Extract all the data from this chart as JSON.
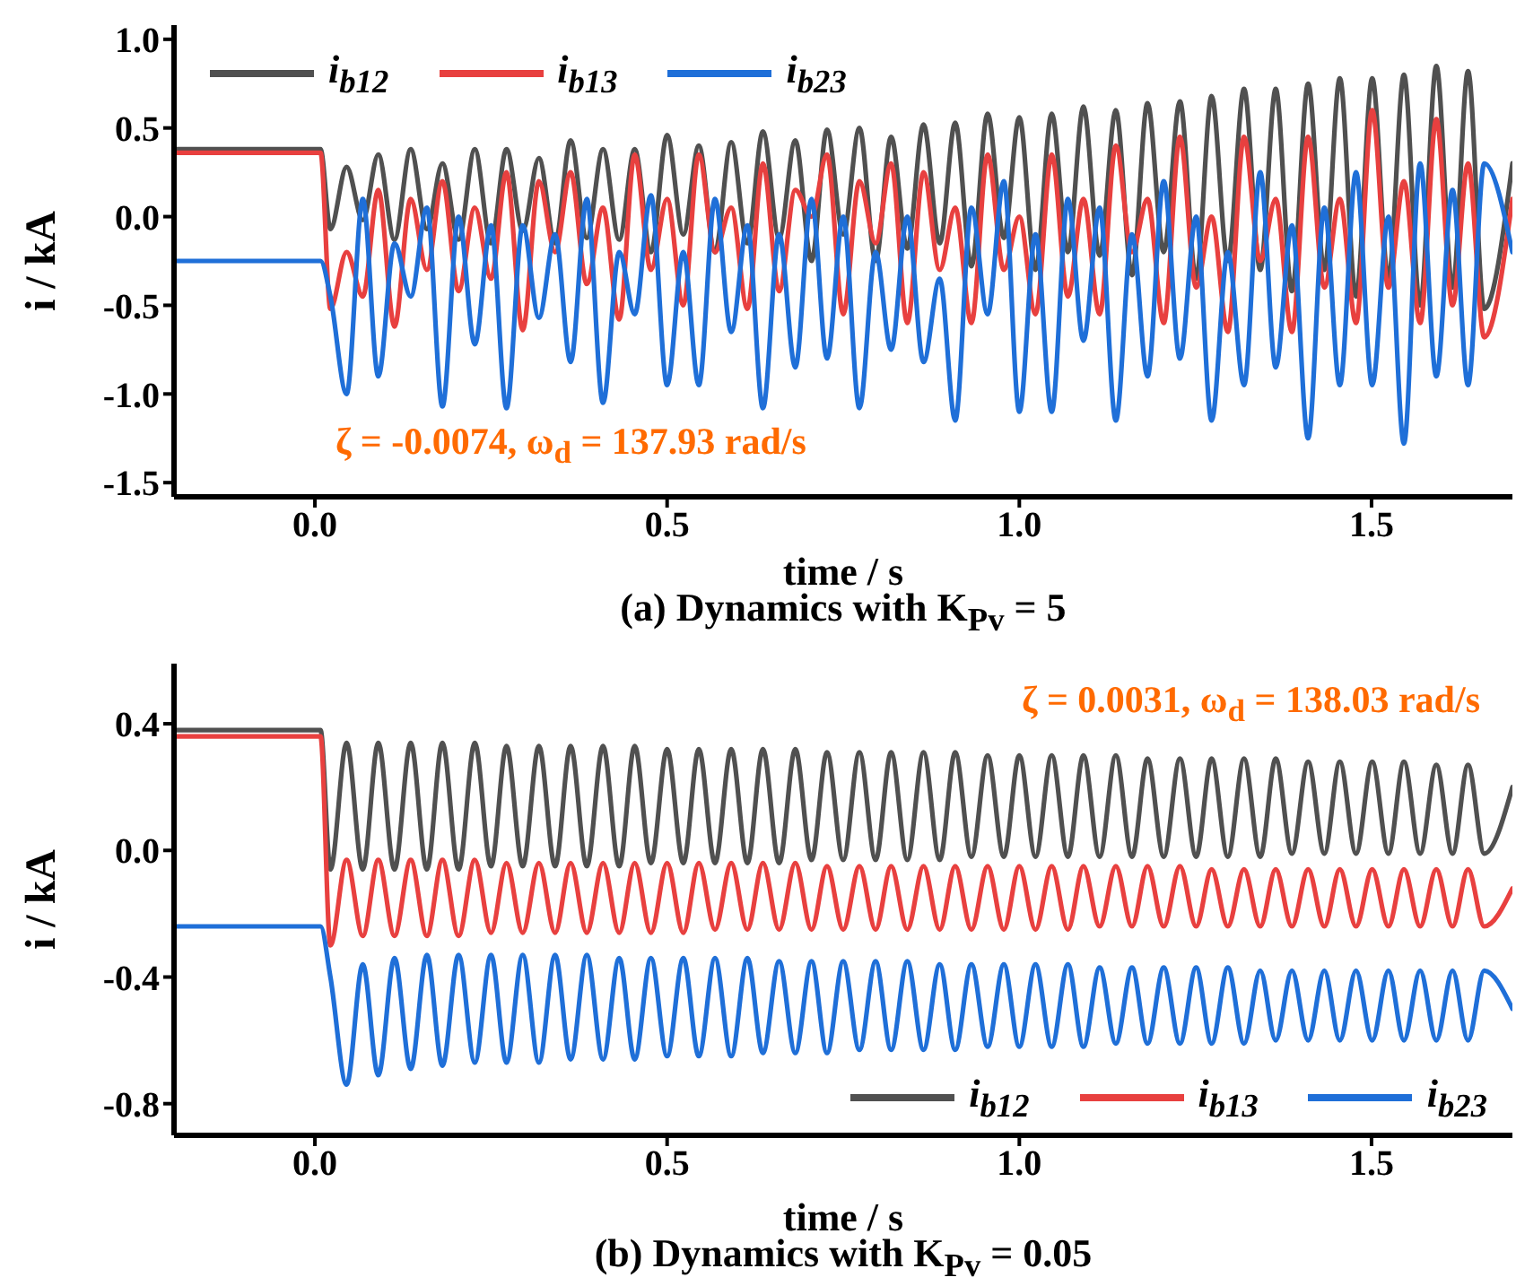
{
  "chart_data": [
    {
      "type": "line",
      "title": "(a) Dynamics with K$_{Pv}$ = 5",
      "xlabel": "time / s",
      "ylabel": "i / kA",
      "legend": "top left",
      "annotations": [
        "ζ = -0.0074, ω$_{d}$ = 137.93 rad/s"
      ],
      "xlim": [
        -0.2,
        1.7
      ],
      "xticks": [
        {
          "value": 0,
          "label": "0.0"
        },
        {
          "value": 0.5,
          "label": "0.5"
        },
        {
          "value": 1,
          "label": "1.0"
        },
        {
          "value": 1.5,
          "label": "1.5"
        }
      ],
      "ylim": [
        -1.58,
        1.08
      ],
      "yticks": [
        {
          "value": 1,
          "label": "1.0"
        },
        {
          "value": 0.5,
          "label": "0.5"
        },
        {
          "value": 0,
          "label": "0.0"
        },
        {
          "value": -0.5,
          "label": "-0.5"
        },
        {
          "value": -1,
          "label": "-1.0"
        },
        {
          "value": -1.5,
          "label": "-1.5"
        }
      ],
      "x": [
        -0.2,
        0.008,
        0.022,
        0.045,
        0.068,
        0.09,
        0.113,
        0.136,
        0.159,
        0.181,
        0.204,
        0.227,
        0.25,
        0.272,
        0.295,
        0.318,
        0.341,
        0.363,
        0.386,
        0.409,
        0.432,
        0.454,
        0.477,
        0.5,
        0.523,
        0.545,
        0.568,
        0.591,
        0.614,
        0.636,
        0.659,
        0.682,
        0.705,
        0.727,
        0.75,
        0.773,
        0.796,
        0.818,
        0.841,
        0.864,
        0.887,
        0.909,
        0.932,
        0.955,
        0.978,
        1.0,
        1.023,
        1.046,
        1.069,
        1.091,
        1.114,
        1.137,
        1.16,
        1.182,
        1.205,
        1.228,
        1.251,
        1.273,
        1.296,
        1.319,
        1.342,
        1.364,
        1.387,
        1.41,
        1.433,
        1.455,
        1.478,
        1.501,
        1.524,
        1.546,
        1.569,
        1.592,
        1.615,
        1.637,
        1.66,
        1.7
      ],
      "series": [
        {
          "name": "i$_{b12}$",
          "color": "#505050",
          "values": [
            0.38,
            0.38,
            -0.07,
            0.28,
            -0.02,
            0.35,
            -0.13,
            0.38,
            -0.07,
            0.3,
            -0.13,
            0.38,
            -0.15,
            0.38,
            -0.08,
            0.33,
            -0.15,
            0.43,
            -0.12,
            0.38,
            -0.13,
            0.38,
            -0.2,
            0.46,
            -0.1,
            0.4,
            -0.2,
            0.42,
            -0.15,
            0.48,
            -0.12,
            0.43,
            -0.25,
            0.49,
            -0.1,
            0.5,
            -0.25,
            0.45,
            -0.18,
            0.52,
            -0.15,
            0.53,
            -0.28,
            0.58,
            -0.12,
            0.56,
            -0.3,
            0.58,
            -0.2,
            0.62,
            -0.22,
            0.6,
            -0.33,
            0.64,
            -0.2,
            0.65,
            -0.35,
            0.68,
            -0.25,
            0.72,
            -0.3,
            0.72,
            -0.42,
            0.75,
            -0.3,
            0.78,
            -0.45,
            0.78,
            -0.35,
            0.8,
            -0.5,
            0.85,
            -0.4,
            0.82,
            -0.52,
            0.3
          ]
        },
        {
          "name": "i$_{b13}$",
          "color": "#e8403f",
          "values": [
            0.36,
            0.36,
            -0.52,
            -0.2,
            -0.45,
            0.15,
            -0.62,
            0.1,
            -0.3,
            0.2,
            -0.42,
            0.05,
            -0.35,
            0.25,
            -0.64,
            0.2,
            -0.2,
            0.25,
            -0.38,
            0.05,
            -0.58,
            0.35,
            -0.3,
            0.1,
            -0.5,
            0.35,
            -0.2,
            0.05,
            -0.52,
            0.3,
            -0.42,
            0.15,
            0.0,
            0.35,
            -0.55,
            0.2,
            -0.15,
            0.3,
            -0.6,
            0.25,
            -0.3,
            0.05,
            -0.6,
            0.35,
            -0.3,
            0.0,
            -0.55,
            0.35,
            -0.45,
            0.1,
            -0.55,
            0.4,
            -0.2,
            0.1,
            -0.6,
            0.45,
            -0.4,
            0.0,
            -0.65,
            0.45,
            -0.25,
            0.1,
            -0.65,
            0.45,
            -0.4,
            0.1,
            -0.6,
            0.6,
            -0.4,
            0.2,
            -0.6,
            0.55,
            -0.5,
            0.3,
            -0.68,
            0.1
          ]
        },
        {
          "name": "i$_{b23}$",
          "color": "#1f6fd8",
          "values": [
            -0.25,
            -0.25,
            -0.45,
            -1.0,
            0.1,
            -0.9,
            -0.15,
            -0.45,
            0.05,
            -1.07,
            0.0,
            -0.72,
            -0.05,
            -1.08,
            -0.05,
            -0.57,
            -0.1,
            -0.82,
            0.1,
            -1.05,
            -0.2,
            -0.55,
            0.12,
            -0.95,
            -0.2,
            -0.95,
            0.1,
            -0.65,
            -0.05,
            -1.08,
            -0.1,
            -0.85,
            0.1,
            -0.8,
            0.0,
            -1.08,
            -0.2,
            -0.75,
            0.0,
            -0.82,
            -0.35,
            -1.15,
            0.05,
            -0.55,
            0.2,
            -1.1,
            -0.1,
            -1.1,
            0.1,
            -0.7,
            0.05,
            -1.15,
            -0.1,
            -0.9,
            0.2,
            -0.8,
            0.0,
            -1.15,
            -0.2,
            -0.95,
            0.25,
            -0.85,
            -0.05,
            -1.25,
            0.05,
            -0.95,
            0.25,
            -0.95,
            0.0,
            -1.28,
            0.3,
            -0.9,
            0.15,
            -0.95,
            0.3,
            -0.2
          ]
        }
      ]
    },
    {
      "type": "line",
      "title": "(b) Dynamics with K$_{Pv}$ = 0.05",
      "xlabel": "time / s",
      "ylabel": "i / kA",
      "legend": "bottom right",
      "annotations": [
        "ζ = 0.0031, ω$_{d}$ = 138.03 rad/s"
      ],
      "xlim": [
        -0.2,
        1.7
      ],
      "xticks": [
        {
          "value": 0,
          "label": "0.0"
        },
        {
          "value": 0.5,
          "label": "0.5"
        },
        {
          "value": 1,
          "label": "1.0"
        },
        {
          "value": 1.5,
          "label": "1.5"
        }
      ],
      "ylim": [
        -0.9,
        0.59
      ],
      "yticks": [
        {
          "value": 0.4,
          "label": "0.4"
        },
        {
          "value": 0,
          "label": "0.0"
        },
        {
          "value": -0.4,
          "label": "-0.4"
        },
        {
          "value": -0.8,
          "label": "-0.8"
        }
      ],
      "x": [
        -0.2,
        0.008,
        0.022,
        0.045,
        0.068,
        0.09,
        0.113,
        0.136,
        0.159,
        0.181,
        0.204,
        0.227,
        0.25,
        0.272,
        0.295,
        0.318,
        0.341,
        0.363,
        0.386,
        0.409,
        0.432,
        0.454,
        0.477,
        0.5,
        0.523,
        0.545,
        0.568,
        0.591,
        0.614,
        0.636,
        0.659,
        0.682,
        0.705,
        0.727,
        0.75,
        0.773,
        0.796,
        0.818,
        0.841,
        0.864,
        0.887,
        0.909,
        0.932,
        0.955,
        0.978,
        1.0,
        1.023,
        1.046,
        1.069,
        1.091,
        1.114,
        1.137,
        1.16,
        1.182,
        1.205,
        1.228,
        1.251,
        1.273,
        1.296,
        1.319,
        1.342,
        1.364,
        1.387,
        1.41,
        1.433,
        1.455,
        1.478,
        1.501,
        1.524,
        1.546,
        1.569,
        1.592,
        1.615,
        1.637,
        1.66,
        1.7
      ],
      "series": [
        {
          "name": "i$_{b12}$",
          "color": "#505050",
          "values": [
            0.38,
            0.38,
            -0.06,
            0.34,
            -0.06,
            0.34,
            -0.06,
            0.34,
            -0.06,
            0.34,
            -0.06,
            0.34,
            -0.05,
            0.33,
            -0.05,
            0.33,
            -0.05,
            0.33,
            -0.05,
            0.33,
            -0.05,
            0.33,
            -0.04,
            0.32,
            -0.04,
            0.32,
            -0.04,
            0.32,
            -0.04,
            0.32,
            -0.04,
            0.32,
            -0.03,
            0.31,
            -0.03,
            0.31,
            -0.03,
            0.31,
            -0.03,
            0.31,
            -0.03,
            0.31,
            -0.02,
            0.3,
            -0.02,
            0.3,
            -0.02,
            0.3,
            -0.02,
            0.3,
            -0.02,
            0.3,
            -0.02,
            0.29,
            -0.02,
            0.29,
            -0.02,
            0.29,
            -0.02,
            0.29,
            -0.02,
            0.29,
            -0.01,
            0.28,
            -0.01,
            0.28,
            -0.01,
            0.28,
            -0.01,
            0.28,
            -0.01,
            0.27,
            -0.01,
            0.27,
            -0.01,
            0.2
          ]
        },
        {
          "name": "i$_{b13}$",
          "color": "#e8403f",
          "values": [
            0.36,
            0.36,
            -0.3,
            -0.03,
            -0.27,
            -0.03,
            -0.27,
            -0.03,
            -0.27,
            -0.03,
            -0.27,
            -0.03,
            -0.26,
            -0.04,
            -0.26,
            -0.04,
            -0.26,
            -0.04,
            -0.26,
            -0.04,
            -0.26,
            -0.04,
            -0.26,
            -0.04,
            -0.26,
            -0.04,
            -0.25,
            -0.04,
            -0.25,
            -0.04,
            -0.25,
            -0.04,
            -0.25,
            -0.05,
            -0.25,
            -0.05,
            -0.25,
            -0.05,
            -0.25,
            -0.05,
            -0.25,
            -0.05,
            -0.25,
            -0.05,
            -0.25,
            -0.05,
            -0.25,
            -0.05,
            -0.25,
            -0.05,
            -0.24,
            -0.05,
            -0.24,
            -0.05,
            -0.24,
            -0.05,
            -0.24,
            -0.06,
            -0.24,
            -0.06,
            -0.24,
            -0.06,
            -0.24,
            -0.06,
            -0.24,
            -0.06,
            -0.24,
            -0.06,
            -0.24,
            -0.06,
            -0.24,
            -0.06,
            -0.24,
            -0.06,
            -0.24,
            -0.12
          ]
        },
        {
          "name": "i$_{b23}$",
          "color": "#1f6fd8",
          "values": [
            -0.24,
            -0.24,
            -0.4,
            -0.74,
            -0.36,
            -0.71,
            -0.34,
            -0.69,
            -0.33,
            -0.68,
            -0.33,
            -0.67,
            -0.33,
            -0.67,
            -0.33,
            -0.67,
            -0.33,
            -0.66,
            -0.33,
            -0.66,
            -0.34,
            -0.66,
            -0.34,
            -0.65,
            -0.34,
            -0.65,
            -0.34,
            -0.65,
            -0.34,
            -0.64,
            -0.35,
            -0.64,
            -0.35,
            -0.64,
            -0.35,
            -0.63,
            -0.35,
            -0.63,
            -0.35,
            -0.63,
            -0.36,
            -0.63,
            -0.36,
            -0.62,
            -0.36,
            -0.62,
            -0.36,
            -0.62,
            -0.36,
            -0.62,
            -0.37,
            -0.61,
            -0.37,
            -0.61,
            -0.37,
            -0.61,
            -0.37,
            -0.61,
            -0.37,
            -0.61,
            -0.38,
            -0.6,
            -0.38,
            -0.6,
            -0.38,
            -0.6,
            -0.38,
            -0.6,
            -0.38,
            -0.6,
            -0.38,
            -0.6,
            -0.38,
            -0.6,
            -0.38,
            -0.5
          ]
        }
      ]
    }
  ]
}
